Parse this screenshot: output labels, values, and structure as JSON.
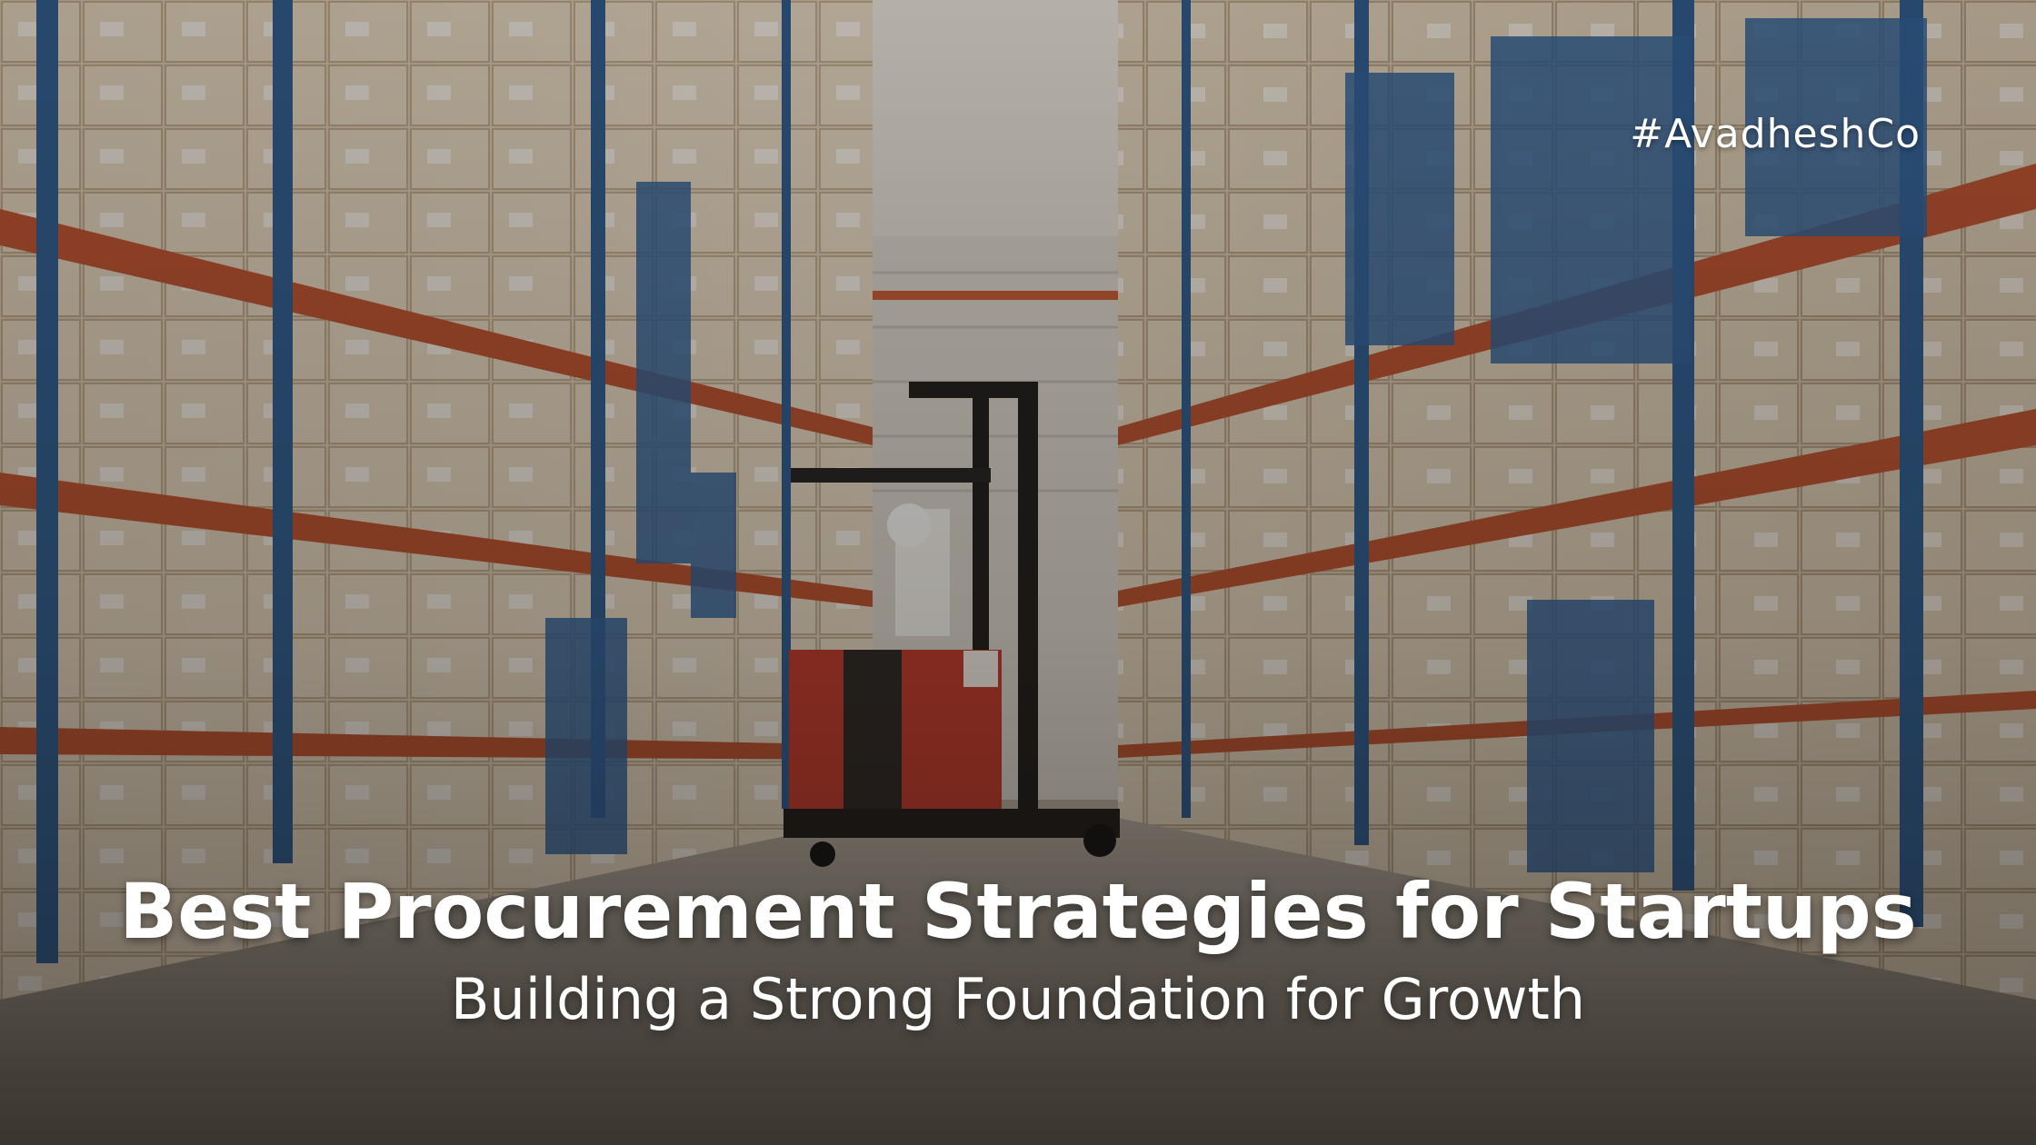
{
  "banner": {
    "hashtag": "#AvadheshCo",
    "title": "Best Procurement Strategies for Startups",
    "subtitle": "Building a Strong Foundation for Growth"
  },
  "photo": {
    "subject": "warehouse-aisle-with-forklift",
    "colors": {
      "rack_orange": "#b8502e",
      "rack_blue": "#2c5a8c",
      "carton": "#d8c3a6",
      "floor": "#8f8578",
      "forklift_red": "#c0392b"
    }
  }
}
